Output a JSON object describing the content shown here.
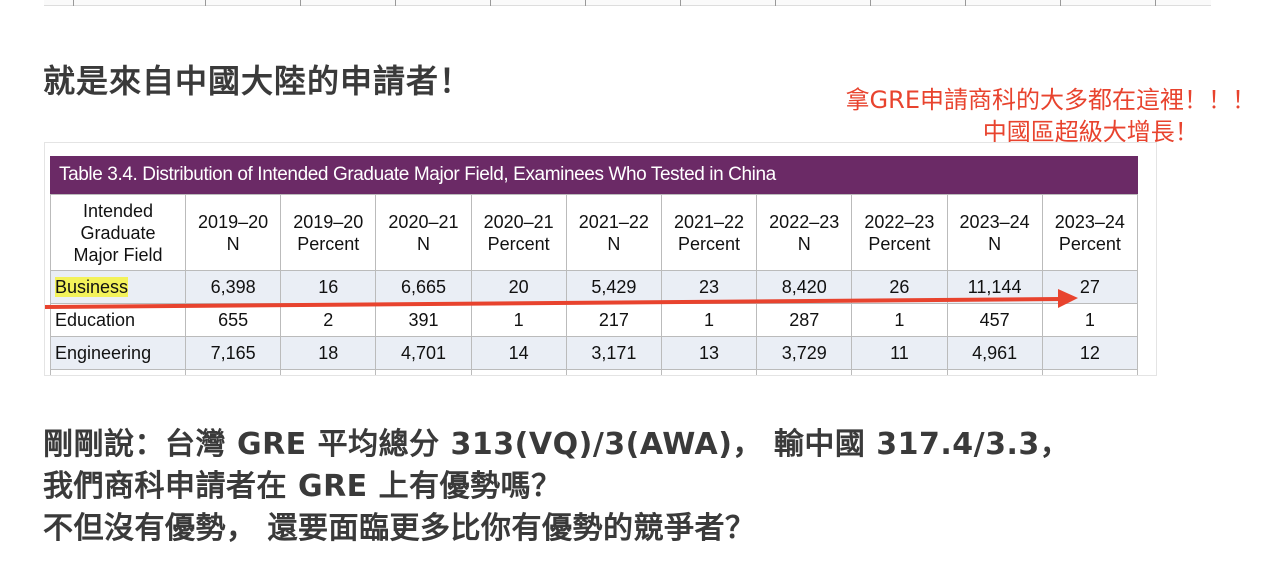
{
  "heading": "就是來自中國大陸的申請者！",
  "annotation": {
    "line1": "拿GRE申請商科的大多都在這裡！！！",
    "line2": "中國區超級大增長！",
    "color": "#e8432e"
  },
  "table": {
    "title": "Table 3.4. Distribution of Intended Graduate Major Field, Examinees Who Tested in China",
    "header_color": "#6b2a66",
    "columns": [
      [
        "Intended",
        "Graduate",
        "Major Field"
      ],
      [
        "2019–20",
        "N"
      ],
      [
        "2019–20",
        "Percent"
      ],
      [
        "2020–21",
        "N"
      ],
      [
        "2020–21",
        "Percent"
      ],
      [
        "2021–22",
        "N"
      ],
      [
        "2021–22",
        "Percent"
      ],
      [
        "2022–23",
        "N"
      ],
      [
        "2022–23",
        "Percent"
      ],
      [
        "2023–24",
        "N"
      ],
      [
        "2023–24",
        "Percent"
      ]
    ],
    "rows": [
      [
        "Business",
        "6,398",
        "16",
        "6,665",
        "20",
        "5,429",
        "23",
        "8,420",
        "26",
        "11,144",
        "27"
      ],
      [
        "Education",
        "655",
        "2",
        "391",
        "1",
        "217",
        "1",
        "287",
        "1",
        "457",
        "1"
      ],
      [
        "Engineering",
        "7,165",
        "18",
        "4,701",
        "14",
        "3,171",
        "13",
        "3,729",
        "11",
        "4,961",
        "12"
      ]
    ]
  },
  "body": {
    "line1": "剛剛說：台灣 GRE 平均總分 313(VQ)/3(AWA)， 輸中國 317.4/3.3，",
    "line2": "我們商科申請者在 GRE 上有優勢嗎？",
    "line3": "不但沒有優勢， 還要面臨更多比你有優勢的競爭者？"
  }
}
